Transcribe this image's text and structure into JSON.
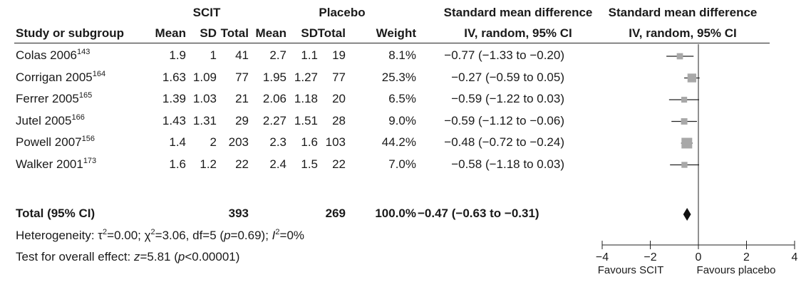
{
  "chart_data": {
    "type": "forest",
    "group_headers": {
      "treatment": "SCIT",
      "control": "Placebo"
    },
    "columns": {
      "study": "Study or subgroup",
      "mean1": "Mean",
      "sd1": "SD",
      "total1": "Total",
      "mean2": "Mean",
      "sd2": "SD",
      "total2": "Total",
      "weight": "Weight",
      "smd_title": "Standard mean difference",
      "smd_sub": "IV, random, 95% CI"
    },
    "plot_header": {
      "title": "Standard mean difference",
      "sub": "IV, random, 95% CI"
    },
    "studies": [
      {
        "name": "Colas 2006",
        "ref": "143",
        "mean1": "1.9",
        "sd1": "1",
        "total1": "41",
        "mean2": "2.7",
        "sd2": "1.1",
        "total2": "19",
        "weight": "8.1%",
        "weight_value": 8.1,
        "ci_text": "−0.77 (−1.33 to −0.20)",
        "est": -0.77,
        "lo": -1.33,
        "hi": -0.2
      },
      {
        "name": "Corrigan 2005",
        "ref": "164",
        "mean1": "1.63",
        "sd1": "1.09",
        "total1": "77",
        "mean2": "1.95",
        "sd2": "1.27",
        "total2": "77",
        "weight": "25.3%",
        "weight_value": 25.3,
        "ci_text": "−0.27 (−0.59 to 0.05)",
        "est": -0.27,
        "lo": -0.59,
        "hi": 0.05
      },
      {
        "name": "Ferrer 2005",
        "ref": "165",
        "mean1": "1.39",
        "sd1": "1.03",
        "total1": "21",
        "mean2": "2.06",
        "sd2": "1.18",
        "total2": "20",
        "weight": "6.5%",
        "weight_value": 6.5,
        "ci_text": "−0.59 (−1.22 to 0.03)",
        "est": -0.59,
        "lo": -1.22,
        "hi": 0.03
      },
      {
        "name": "Jutel 2005",
        "ref": "166",
        "mean1": "1.43",
        "sd1": "1.31",
        "total1": "29",
        "mean2": "2.27",
        "sd2": "1.51",
        "total2": "28",
        "weight": "9.0%",
        "weight_value": 9.0,
        "ci_text": "−0.59 (−1.12 to −0.06)",
        "est": -0.59,
        "lo": -1.12,
        "hi": -0.06
      },
      {
        "name": "Powell 2007",
        "ref": "156",
        "mean1": "1.4",
        "sd1": "2",
        "total1": "203",
        "mean2": "2.3",
        "sd2": "1.6",
        "total2": "103",
        "weight": "44.2%",
        "weight_value": 44.2,
        "ci_text": "−0.48 (−0.72 to −0.24)",
        "est": -0.48,
        "lo": -0.72,
        "hi": -0.24
      },
      {
        "name": "Walker 2001",
        "ref": "173",
        "mean1": "1.6",
        "sd1": "1.2",
        "total1": "22",
        "mean2": "2.4",
        "sd2": "1.5",
        "total2": "22",
        "weight": "7.0%",
        "weight_value": 7.0,
        "ci_text": "−0.58 (−1.18 to 0.03)",
        "est": -0.58,
        "lo": -1.18,
        "hi": 0.03
      }
    ],
    "total": {
      "label": "Total (95% CI)",
      "total1": "393",
      "total2": "269",
      "weight": "100.0%",
      "ci_text": "−0.47 (−0.63 to −0.31)",
      "est": -0.47,
      "lo": -0.63,
      "hi": -0.31
    },
    "heterogeneity": {
      "prefix": "Heterogeneity: ",
      "tau_sym": "τ",
      "tau_sup": "2",
      "tau_val": "=0.00; ",
      "chi_sym": "χ",
      "chi_sup": "2",
      "chi_val": "=3.06, df=5 (",
      "p_sym": "p",
      "p_val": "=0.69); ",
      "i_sym": "I",
      "i_sup": "2",
      "i_val": "=0%"
    },
    "overall_effect": {
      "prefix": "Test for overall effect: ",
      "z_sym": "z",
      "z_val": "=5.81 (",
      "p_sym": "p",
      "p_val": "<0.00001)"
    },
    "axis": {
      "xlim": [
        -4,
        4
      ],
      "ticks": [
        -4,
        -2,
        0,
        2,
        4
      ],
      "tick_labels": [
        "−4",
        "−2",
        "0",
        "2",
        "4"
      ],
      "favours_left": "Favours SCIT",
      "favours_right": "Favours placebo"
    },
    "colors": {
      "box": "#a8a8a8",
      "line": "#222222",
      "diamond": "#111111"
    }
  }
}
